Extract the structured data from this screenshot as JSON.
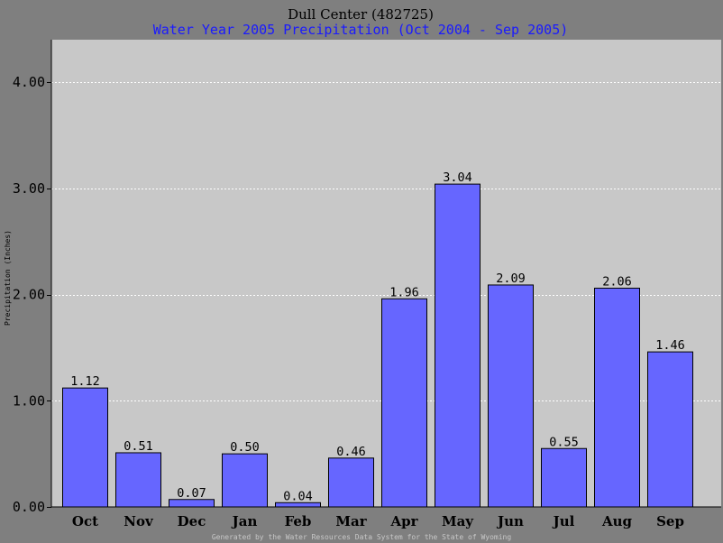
{
  "chart_data": {
    "type": "bar",
    "title": "Dull Center (482725)",
    "subtitle": "Water Year 2005 Precipitation (Oct 2004 - Sep 2005)",
    "ylabel": "Precipitation (Inches)",
    "xlabel": "",
    "categories": [
      "Oct",
      "Nov",
      "Dec",
      "Jan",
      "Feb",
      "Mar",
      "Apr",
      "May",
      "Jun",
      "Jul",
      "Aug",
      "Sep"
    ],
    "values": [
      1.12,
      0.51,
      0.07,
      0.5,
      0.04,
      0.46,
      1.96,
      3.04,
      2.09,
      0.55,
      2.06,
      1.46
    ],
    "value_labels": [
      "1.12",
      "0.51",
      "0.07",
      "0.50",
      "0.04",
      "0.46",
      "1.96",
      "3.04",
      "2.09",
      "0.55",
      "2.06",
      "1.46"
    ],
    "yticks": [
      0,
      1,
      2,
      3,
      4
    ],
    "ytick_labels": [
      "0.00",
      "1.00",
      "2.00",
      "3.00",
      "4.00"
    ],
    "ylim": [
      0,
      4.4
    ],
    "grid": true,
    "legend": "none",
    "colors": {
      "bar": "#6666ff",
      "plot_background": "#c8c8c8",
      "page_background": "#7f7f7f",
      "subtitle": "#1a1aff",
      "footer": "#c8c8c8"
    }
  },
  "footer": "Generated by the Water Resources Data System for the State of Wyoming"
}
